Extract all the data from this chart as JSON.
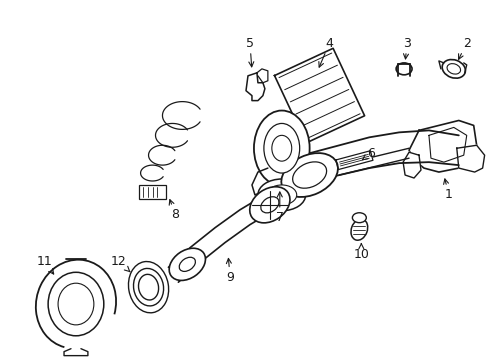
{
  "background_color": "#ffffff",
  "line_color": "#1a1a1a",
  "figsize": [
    4.89,
    3.6
  ],
  "dpi": 100,
  "image_b64": ""
}
